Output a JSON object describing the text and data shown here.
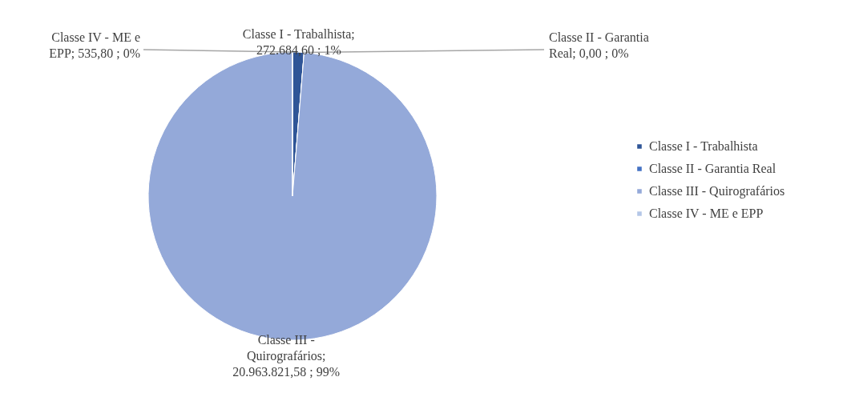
{
  "chart_data": {
    "type": "pie",
    "categories": [
      "Classe I - Trabalhista",
      "Classe II - Garantia Real",
      "Classe III - Quirografários",
      "Classe IV - ME e EPP"
    ],
    "values": [
      272684.6,
      0.0,
      20963821.58,
      535.8
    ],
    "colors": [
      "#2f5597",
      "#4472c4",
      "#94a9d9",
      "#b4c7e7"
    ],
    "value_labels": [
      "Classe I - Trabalhista; 272.684,60 ; 1%",
      "Classe II - Garantia Real; 0,00 ; 0%",
      "Classe III - Quirografários; 20.963.821,58 ; 99%",
      "Classe IV - ME e EPP; 535,80 ; 0%"
    ],
    "legend": "right"
  }
}
